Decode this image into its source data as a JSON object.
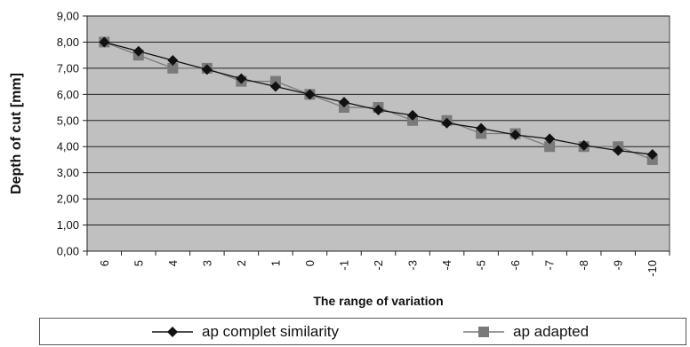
{
  "chart_data": {
    "type": "line",
    "xlabel": "The  range of variation",
    "ylabel": "Depth of cut  [mm]",
    "categories": [
      "6",
      "5",
      "4",
      "3",
      "2",
      "1",
      "0",
      "-1",
      "-2",
      "-3",
      "-4",
      "-5",
      "-6",
      "-7",
      "-8",
      "-9",
      "-10"
    ],
    "y_tick_labels": [
      "0,00",
      "1,00",
      "2,00",
      "3,00",
      "4,00",
      "5,00",
      "6,00",
      "7,00",
      "8,00",
      "9,00"
    ],
    "ylim": [
      0,
      9
    ],
    "grid": "horizontal",
    "legend_position": "bottom",
    "plot_background": "#c0c0c0",
    "series": [
      {
        "name": "ap complet similarity",
        "marker": "diamond",
        "color": "#111111",
        "values": [
          8.0,
          7.65,
          7.3,
          6.95,
          6.6,
          6.3,
          6.0,
          5.7,
          5.4,
          5.2,
          4.9,
          4.7,
          4.45,
          4.3,
          4.05,
          3.85,
          3.7
        ]
      },
      {
        "name": "ap adapted",
        "marker": "square",
        "color": "#7a7a7a",
        "values": [
          8.0,
          7.5,
          7.0,
          7.0,
          6.5,
          6.5,
          6.0,
          5.5,
          5.5,
          5.0,
          5.0,
          4.5,
          4.5,
          4.0,
          4.0,
          4.0,
          3.5
        ]
      }
    ]
  }
}
